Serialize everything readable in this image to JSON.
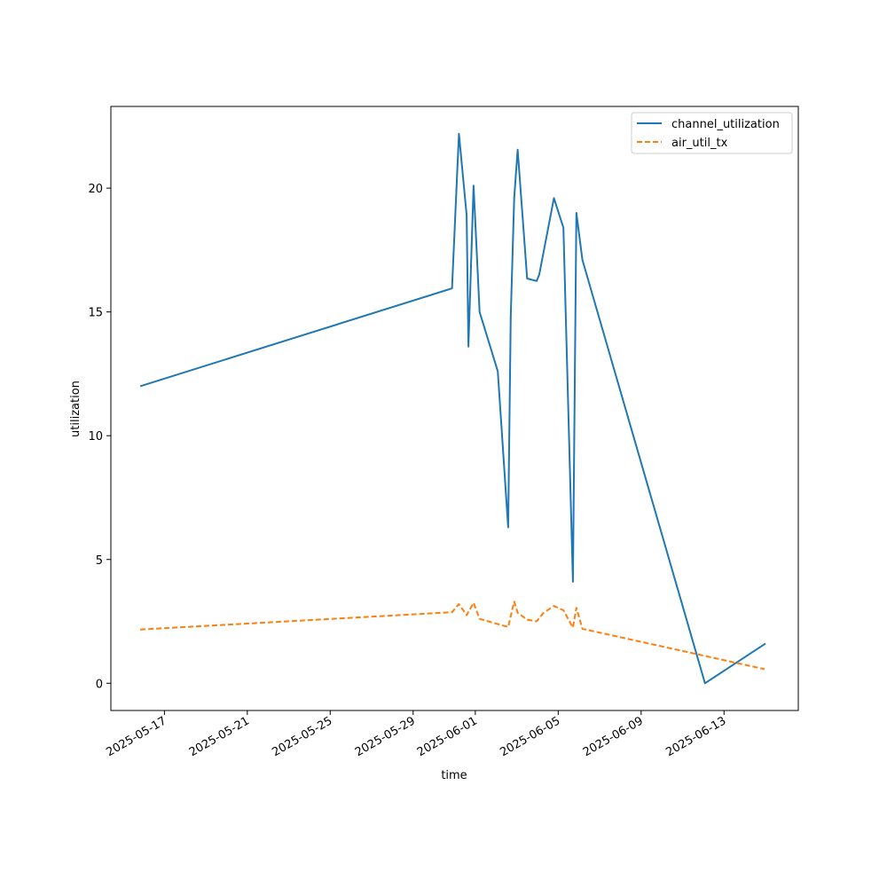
{
  "chart_data": {
    "type": "line",
    "xlabel": "time",
    "ylabel": "utilization",
    "xlim": [
      "2025-05-14T10:00",
      "2025-06-16T14:00"
    ],
    "ylim": [
      -1.1,
      23.3
    ],
    "x_ticks": [
      "2025-05-17",
      "2025-05-21",
      "2025-05-25",
      "2025-05-29",
      "2025-06-01",
      "2025-06-05",
      "2025-06-09",
      "2025-06-13"
    ],
    "y_ticks": [
      0,
      5,
      10,
      15,
      20
    ],
    "grid": false,
    "legend_position": "top-right",
    "series": [
      {
        "name": "channel_utilization",
        "color": "#1f77b4",
        "dash": "solid",
        "points": [
          {
            "x": "2025-05-15T20:00",
            "y": 12.0
          },
          {
            "x": "2025-05-30T21:00",
            "y": 15.95
          },
          {
            "x": "2025-05-31T05:00",
            "y": 22.2
          },
          {
            "x": "2025-05-31T14:00",
            "y": 18.9
          },
          {
            "x": "2025-05-31T16:00",
            "y": 13.6
          },
          {
            "x": "2025-05-31T22:00",
            "y": 20.1
          },
          {
            "x": "2025-06-01T05:00",
            "y": 15.0
          },
          {
            "x": "2025-06-02T02:00",
            "y": 12.6
          },
          {
            "x": "2025-06-02T14:00",
            "y": 6.3
          },
          {
            "x": "2025-06-02T17:00",
            "y": 14.8
          },
          {
            "x": "2025-06-02T21:00",
            "y": 19.6
          },
          {
            "x": "2025-06-03T01:00",
            "y": 21.55
          },
          {
            "x": "2025-06-03T12:00",
            "y": 16.35
          },
          {
            "x": "2025-06-03T23:00",
            "y": 16.25
          },
          {
            "x": "2025-06-04T02:00",
            "y": 16.5
          },
          {
            "x": "2025-06-04T19:00",
            "y": 19.6
          },
          {
            "x": "2025-06-05T06:00",
            "y": 18.4
          },
          {
            "x": "2025-06-05T17:00",
            "y": 4.1
          },
          {
            "x": "2025-06-05T21:00",
            "y": 19.0
          },
          {
            "x": "2025-06-06T04:00",
            "y": 17.1
          },
          {
            "x": "2025-06-12T02:00",
            "y": 0.0
          },
          {
            "x": "2025-06-15T00:00",
            "y": 1.6
          }
        ]
      },
      {
        "name": "air_util_tx",
        "color": "#ff7f0e",
        "dash": "dashed",
        "points": [
          {
            "x": "2025-05-15T20:00",
            "y": 2.17
          },
          {
            "x": "2025-05-30T21:00",
            "y": 2.87
          },
          {
            "x": "2025-05-31T05:00",
            "y": 3.2
          },
          {
            "x": "2025-05-31T14:00",
            "y": 2.75
          },
          {
            "x": "2025-05-31T22:00",
            "y": 3.25
          },
          {
            "x": "2025-06-01T05:00",
            "y": 2.6
          },
          {
            "x": "2025-06-02T14:00",
            "y": 2.27
          },
          {
            "x": "2025-06-02T21:00",
            "y": 3.3
          },
          {
            "x": "2025-06-03T01:00",
            "y": 2.85
          },
          {
            "x": "2025-06-03T12:00",
            "y": 2.57
          },
          {
            "x": "2025-06-03T23:00",
            "y": 2.5
          },
          {
            "x": "2025-06-04T07:00",
            "y": 2.85
          },
          {
            "x": "2025-06-04T19:00",
            "y": 3.12
          },
          {
            "x": "2025-06-05T06:00",
            "y": 2.95
          },
          {
            "x": "2025-06-05T17:00",
            "y": 2.25
          },
          {
            "x": "2025-06-05T21:00",
            "y": 3.05
          },
          {
            "x": "2025-06-06T04:00",
            "y": 2.2
          },
          {
            "x": "2025-06-14T23:00",
            "y": 0.57
          }
        ]
      }
    ]
  }
}
